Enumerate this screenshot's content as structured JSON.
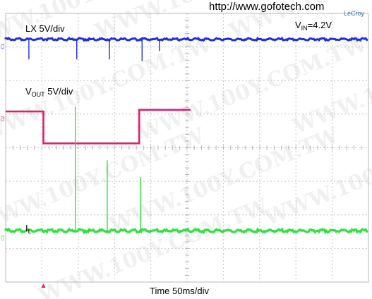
{
  "source_url": "http://www.gofotech.com",
  "brand": "LeCroy",
  "watermark": "WWW.100Y.COM.TW",
  "chart_data": {
    "type": "line",
    "title": "",
    "xlabel": "Time  50ms/div",
    "grid": true,
    "grid_divisions": {
      "x": 10,
      "y": 8
    },
    "vin_label": {
      "prefix": "V",
      "sub": "IN",
      "suffix": "=4.2V"
    },
    "series": [
      {
        "name": "LX  5V/div",
        "name_parts": {
          "prefix": "LX  5V/div",
          "sub": "",
          "suffix": ""
        },
        "channel_marker": "C1",
        "color": "#1f2fe0",
        "baseline_div": 7.23,
        "spikes_ms": [
          32,
          98,
          143,
          188,
          212
        ],
        "spike_depth_div": [
          -0.6,
          -0.6,
          -0.6,
          -0.65,
          -0.35
        ]
      },
      {
        "name": "VOUT 5V/div",
        "name_parts": {
          "prefix": "V",
          "sub": "OUT",
          "suffix": " 5V/div"
        },
        "channel_marker": "C2",
        "color": "#e0206a",
        "segments_ms_div": [
          [
            0,
            5.08
          ],
          [
            52,
            5.08
          ],
          [
            52,
            4.13
          ],
          [
            184,
            4.13
          ],
          [
            184,
            5.13
          ],
          [
            255,
            5.13
          ]
        ]
      },
      {
        "name": "IL",
        "name_parts": {
          "prefix": "I",
          "sub": "L",
          "suffix": ""
        },
        "channel_marker": "C3",
        "color": "#30e040",
        "baseline_div": 1.53,
        "spikes_ms": [
          96,
          140,
          186
        ],
        "spike_height_div": [
          3.7,
          2.1,
          1.6
        ]
      }
    ],
    "trigger_marker_ms": 52,
    "timebase_ms_per_div": 50
  }
}
